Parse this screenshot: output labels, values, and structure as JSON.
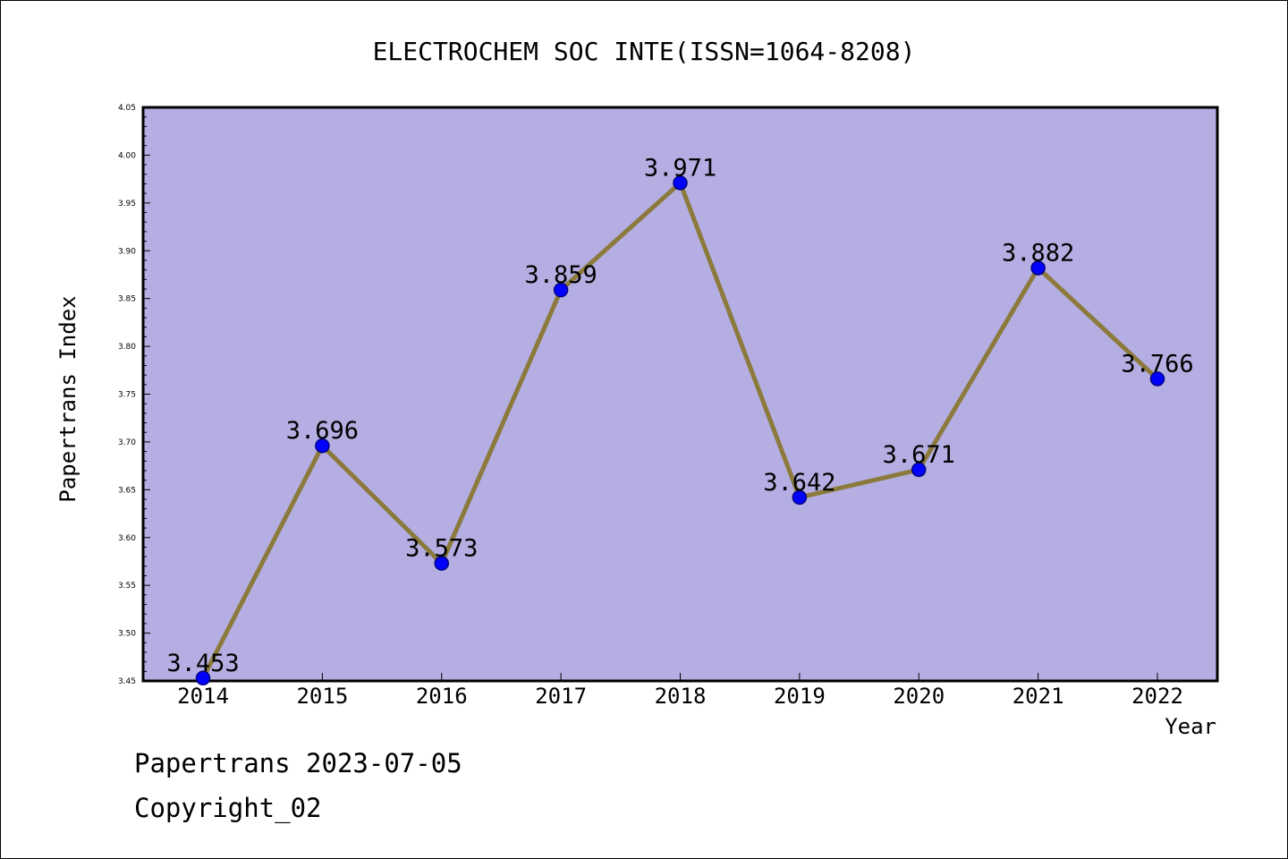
{
  "chart_data": {
    "type": "line",
    "title": "ELECTROCHEM SOC INTE(ISSN=1064-8208)",
    "xlabel": "Year",
    "ylabel": "Papertrans Index",
    "categories": [
      "2014",
      "2015",
      "2016",
      "2017",
      "2018",
      "2019",
      "2020",
      "2021",
      "2022"
    ],
    "series": [
      {
        "values": [
          3.453,
          3.696,
          3.573,
          3.859,
          3.971,
          3.642,
          3.671,
          3.882,
          3.766
        ]
      }
    ],
    "data_labels": [
      "3.453",
      "3.696",
      "3.573",
      "3.859",
      "3.971",
      "3.642",
      "3.671",
      "3.882",
      "3.766"
    ],
    "ylim": [
      3.45,
      4.05
    ],
    "yticks": [
      "3.45",
      "3.50",
      "3.55",
      "3.60",
      "3.65",
      "3.70",
      "3.75",
      "3.80",
      "3.85",
      "3.90",
      "3.95",
      "4.00",
      "4.05"
    ],
    "grid": false,
    "legend": "none",
    "colors": {
      "plot_background": "#b4aee2",
      "line": "#8b7a3c",
      "marker": "#0000ff",
      "marker_edge": "#000080"
    }
  },
  "footer": {
    "date_line": "Papertrans 2023-07-05",
    "copyright": "Copyright_02"
  }
}
